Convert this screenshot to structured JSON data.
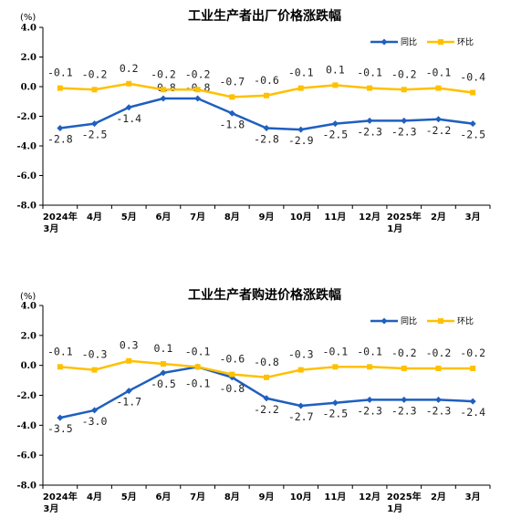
{
  "colors": {
    "yoy": "#1f5fbf",
    "mom": "#ffc000",
    "axis": "#000000"
  },
  "chart_data": [
    {
      "type": "line",
      "title": "工业生产者出厂价格涨跌幅",
      "unit": "(%)",
      "ylim": [
        -8.0,
        4.0
      ],
      "yticks": [
        "4.0",
        "2.0",
        "0.0",
        "-2.0",
        "-4.0",
        "-6.0",
        "-8.0"
      ],
      "categories": [
        "2024年|3月",
        "4月",
        "5月",
        "6月",
        "7月",
        "8月",
        "9月",
        "10月",
        "11月",
        "12月",
        "2025年|1月",
        "2月",
        "3月"
      ],
      "legend_position": "top-right",
      "series": [
        {
          "name": "同比",
          "values": [
            -2.8,
            -2.5,
            -1.4,
            -0.8,
            -0.8,
            -1.8,
            -2.8,
            -2.9,
            -2.5,
            -2.3,
            -2.3,
            -2.2,
            -2.5
          ],
          "labels": [
            "-2.8",
            "-2.5",
            "-1.4",
            "-0.8",
            "-0.8",
            "-1.8",
            "-2.8",
            "-2.9",
            "-2.5",
            "-2.3",
            "-2.3",
            "-2.2",
            "-2.5"
          ]
        },
        {
          "name": "环比",
          "values": [
            -0.1,
            -0.2,
            0.2,
            -0.2,
            -0.2,
            -0.7,
            -0.6,
            -0.1,
            0.1,
            -0.1,
            -0.2,
            -0.1,
            -0.4
          ],
          "labels": [
            "-0.1",
            "-0.2",
            "0.2",
            "-0.2",
            "-0.2",
            "-0.7",
            "-0.6",
            "-0.1",
            "0.1",
            "-0.1",
            "-0.2",
            "-0.1",
            "-0.4"
          ]
        }
      ]
    },
    {
      "type": "line",
      "title": "工业生产者购进价格涨跌幅",
      "unit": "(%)",
      "ylim": [
        -8.0,
        4.0
      ],
      "yticks": [
        "4.0",
        "2.0",
        "0.0",
        "-2.0",
        "-4.0",
        "-6.0",
        "-8.0"
      ],
      "categories": [
        "2024年|3月",
        "4月",
        "5月",
        "6月",
        "7月",
        "8月",
        "9月",
        "10月",
        "11月",
        "12月",
        "2025年|1月",
        "2月",
        "3月"
      ],
      "legend_position": "top-right",
      "series": [
        {
          "name": "同比",
          "values": [
            -3.5,
            -3.0,
            -1.7,
            -0.5,
            -0.1,
            -0.8,
            -2.2,
            -2.7,
            -2.5,
            -2.3,
            -2.3,
            -2.3,
            -2.4
          ],
          "labels": [
            "-3.5",
            "-3.0",
            "-1.7",
            "-0.5",
            "-0.1",
            "-0.8",
            "-2.2",
            "-2.7",
            "-2.5",
            "-2.3",
            "-2.3",
            "-2.3",
            "-2.4"
          ]
        },
        {
          "name": "环比",
          "values": [
            -0.1,
            -0.3,
            0.3,
            0.1,
            -0.1,
            -0.6,
            -0.8,
            -0.3,
            -0.1,
            -0.1,
            -0.2,
            -0.2,
            -0.2
          ],
          "labels": [
            "-0.1",
            "-0.3",
            "0.3",
            "0.1",
            "-0.1",
            "-0.6",
            "-0.8",
            "-0.3",
            "-0.1",
            "-0.1",
            "-0.2",
            "-0.2",
            "-0.2"
          ]
        }
      ]
    }
  ]
}
